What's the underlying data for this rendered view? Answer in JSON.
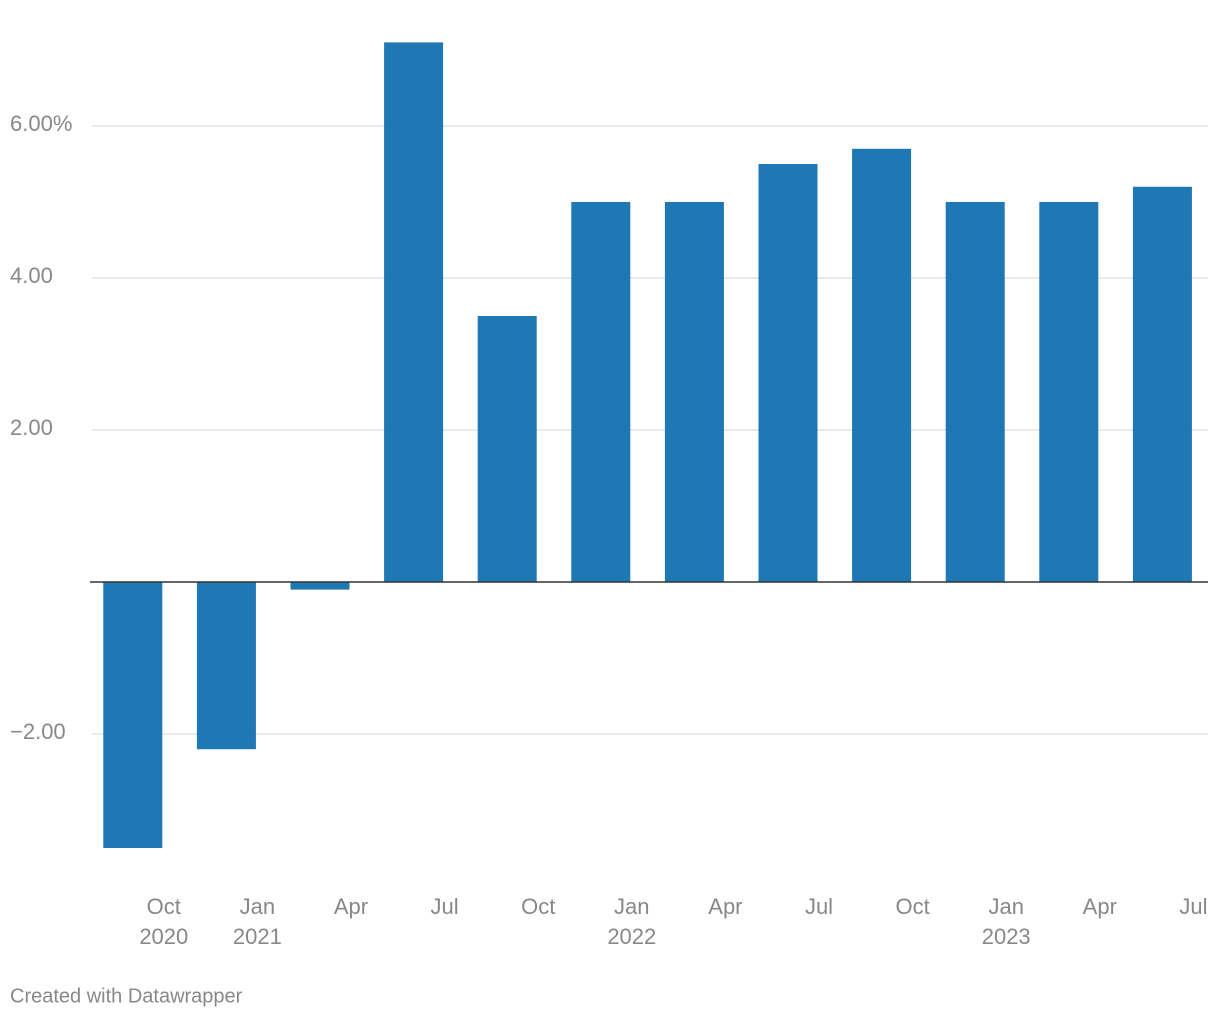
{
  "chart_data": {
    "type": "bar",
    "categories": [
      "Oct",
      "Jan",
      "Apr",
      "Jul",
      "Oct",
      "Jan",
      "Apr",
      "Jul",
      "Oct",
      "Jan",
      "Apr",
      "Jul"
    ],
    "years": [
      "2020",
      "2021",
      null,
      null,
      null,
      "2022",
      null,
      null,
      null,
      "2023",
      null,
      null
    ],
    "values": [
      -3.5,
      -2.2,
      -0.1,
      7.1,
      3.5,
      5.0,
      5.0,
      5.5,
      5.7,
      5.0,
      5.0,
      5.2
    ],
    "color": "#1f77b4",
    "ylim": [
      -3.5,
      7.1
    ],
    "yticks": [
      {
        "value": 6,
        "label": "6.00%"
      },
      {
        "value": 4,
        "label": "4.00"
      },
      {
        "value": 2,
        "label": "2.00"
      },
      {
        "value": -2,
        "label": "−2.00"
      }
    ],
    "grid": true,
    "footer": "Created with Datawrapper"
  }
}
